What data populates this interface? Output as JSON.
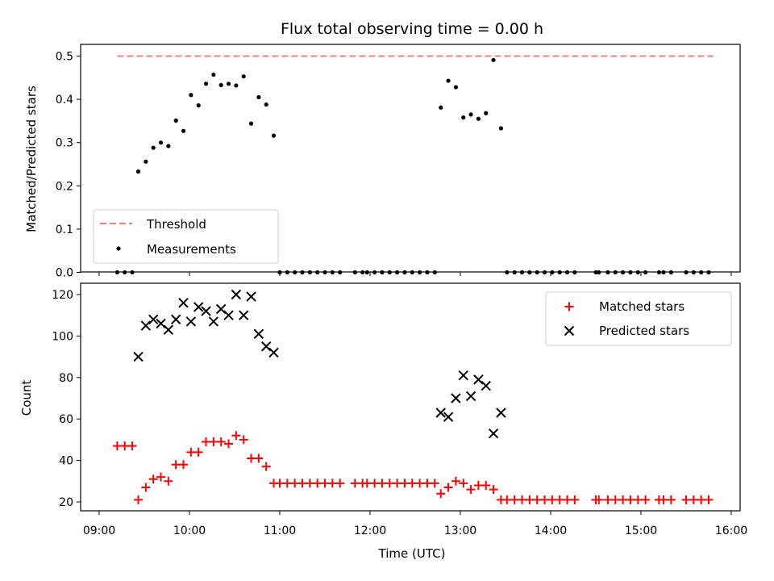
{
  "chart_data": [
    {
      "type": "scatter",
      "title": "Flux total observing time = 0.00 h",
      "xlabel": "",
      "ylabel": "Matched/Predicted stars",
      "xlim": [
        "09:00",
        "16:00"
      ],
      "ylim": [
        0,
        0.52
      ],
      "yticks": [
        "0.0",
        "0.1",
        "0.2",
        "0.3",
        "0.4",
        "0.5"
      ],
      "legend_position": "lower-left",
      "series": [
        {
          "name": "Threshold",
          "kind": "line",
          "style": "dashed",
          "color": "#f08080",
          "x": [
            "09:12",
            "15:48"
          ],
          "y": [
            0.5,
            0.5
          ]
        },
        {
          "name": "Measurements",
          "kind": "points",
          "color": "#000000",
          "points": [
            [
              "09:12",
              0
            ],
            [
              "09:17",
              0
            ],
            [
              "09:22",
              0
            ],
            [
              "09:26",
              0.233
            ],
            [
              "09:31",
              0.256
            ],
            [
              "09:36",
              0.288
            ],
            [
              "09:41",
              0.3
            ],
            [
              "09:46",
              0.292
            ],
            [
              "09:51",
              0.351
            ],
            [
              "09:56",
              0.327
            ],
            [
              "10:01",
              0.41
            ],
            [
              "10:06",
              0.386
            ],
            [
              "10:11",
              0.436
            ],
            [
              "10:16",
              0.457
            ],
            [
              "10:21",
              0.433
            ],
            [
              "10:26",
              0.436
            ],
            [
              "10:31",
              0.432
            ],
            [
              "10:36",
              0.453
            ],
            [
              "10:41",
              0.344
            ],
            [
              "10:46",
              0.405
            ],
            [
              "10:51",
              0.388
            ],
            [
              "10:56",
              0.316
            ],
            [
              "11:00",
              0
            ],
            [
              "11:05",
              0
            ],
            [
              "11:10",
              0
            ],
            [
              "11:15",
              0
            ],
            [
              "11:20",
              0
            ],
            [
              "11:25",
              0
            ],
            [
              "11:30",
              0
            ],
            [
              "11:35",
              0
            ],
            [
              "11:40",
              0
            ],
            [
              "11:50",
              0
            ],
            [
              "11:55",
              0
            ],
            [
              "11:58",
              0
            ],
            [
              "12:03",
              0
            ],
            [
              "12:08",
              0
            ],
            [
              "12:13",
              0
            ],
            [
              "12:18",
              0
            ],
            [
              "12:23",
              0
            ],
            [
              "12:28",
              0
            ],
            [
              "12:33",
              0
            ],
            [
              "12:38",
              0
            ],
            [
              "12:43",
              0
            ],
            [
              "12:47",
              0.381
            ],
            [
              "12:52",
              0.443
            ],
            [
              "12:57",
              0.428
            ],
            [
              "13:02",
              0.358
            ],
            [
              "13:07",
              0.365
            ],
            [
              "13:12",
              0.355
            ],
            [
              "13:17",
              0.368
            ],
            [
              "13:22",
              0.491
            ],
            [
              "13:27",
              0.333
            ],
            [
              "13:31",
              0
            ],
            [
              "13:36",
              0
            ],
            [
              "13:41",
              0
            ],
            [
              "13:46",
              0
            ],
            [
              "13:51",
              0
            ],
            [
              "13:56",
              0
            ],
            [
              "14:01",
              0
            ],
            [
              "14:06",
              0
            ],
            [
              "14:11",
              0
            ],
            [
              "14:16",
              0
            ],
            [
              "14:30",
              0
            ],
            [
              "14:32",
              0
            ],
            [
              "14:38",
              0
            ],
            [
              "14:43",
              0
            ],
            [
              "14:48",
              0
            ],
            [
              "14:53",
              0
            ],
            [
              "14:58",
              0
            ],
            [
              "15:03",
              0
            ],
            [
              "15:12",
              0
            ],
            [
              "15:15",
              0
            ],
            [
              "15:20",
              0
            ],
            [
              "15:30",
              0
            ],
            [
              "15:35",
              0
            ],
            [
              "15:40",
              0
            ],
            [
              "15:45",
              0
            ]
          ]
        }
      ]
    },
    {
      "type": "scatter",
      "title": "",
      "xlabel": "Time (UTC)",
      "ylabel": "Count",
      "xlim": [
        "09:00",
        "16:00"
      ],
      "ylim": [
        16,
        126
      ],
      "xticks": [
        "09:00",
        "10:00",
        "11:00",
        "12:00",
        "13:00",
        "14:00",
        "15:00",
        "16:00"
      ],
      "yticks": [
        "20",
        "40",
        "60",
        "80",
        "100",
        "120"
      ],
      "legend_position": "upper-right",
      "series": [
        {
          "name": "Matched stars",
          "marker": "plus",
          "color": "#ff0000",
          "points": [
            [
              "09:12",
              47
            ],
            [
              "09:17",
              47
            ],
            [
              "09:22",
              47
            ],
            [
              "09:26",
              21
            ],
            [
              "09:31",
              27
            ],
            [
              "09:36",
              31
            ],
            [
              "09:41",
              32
            ],
            [
              "09:46",
              30
            ],
            [
              "09:51",
              38
            ],
            [
              "09:56",
              38
            ],
            [
              "10:01",
              44
            ],
            [
              "10:06",
              44
            ],
            [
              "10:11",
              49
            ],
            [
              "10:16",
              49
            ],
            [
              "10:21",
              49
            ],
            [
              "10:26",
              48
            ],
            [
              "10:31",
              52
            ],
            [
              "10:36",
              50
            ],
            [
              "10:41",
              41
            ],
            [
              "10:46",
              41
            ],
            [
              "10:51",
              37
            ],
            [
              "10:56",
              29
            ],
            [
              "11:00",
              29
            ],
            [
              "11:05",
              29
            ],
            [
              "11:10",
              29
            ],
            [
              "11:15",
              29
            ],
            [
              "11:20",
              29
            ],
            [
              "11:25",
              29
            ],
            [
              "11:30",
              29
            ],
            [
              "11:35",
              29
            ],
            [
              "11:40",
              29
            ],
            [
              "11:50",
              29
            ],
            [
              "11:55",
              29
            ],
            [
              "11:58",
              29
            ],
            [
              "12:03",
              29
            ],
            [
              "12:08",
              29
            ],
            [
              "12:13",
              29
            ],
            [
              "12:18",
              29
            ],
            [
              "12:23",
              29
            ],
            [
              "12:28",
              29
            ],
            [
              "12:33",
              29
            ],
            [
              "12:38",
              29
            ],
            [
              "12:43",
              29
            ],
            [
              "12:47",
              24
            ],
            [
              "12:52",
              27
            ],
            [
              "12:57",
              30
            ],
            [
              "13:02",
              29
            ],
            [
              "13:07",
              26
            ],
            [
              "13:12",
              28
            ],
            [
              "13:17",
              28
            ],
            [
              "13:22",
              26
            ],
            [
              "13:27",
              21
            ],
            [
              "13:31",
              21
            ],
            [
              "13:36",
              21
            ],
            [
              "13:41",
              21
            ],
            [
              "13:46",
              21
            ],
            [
              "13:51",
              21
            ],
            [
              "13:56",
              21
            ],
            [
              "14:01",
              21
            ],
            [
              "14:06",
              21
            ],
            [
              "14:11",
              21
            ],
            [
              "14:16",
              21
            ],
            [
              "14:30",
              21
            ],
            [
              "14:32",
              21
            ],
            [
              "14:38",
              21
            ],
            [
              "14:43",
              21
            ],
            [
              "14:48",
              21
            ],
            [
              "14:53",
              21
            ],
            [
              "14:58",
              21
            ],
            [
              "15:03",
              21
            ],
            [
              "15:12",
              21
            ],
            [
              "15:15",
              21
            ],
            [
              "15:20",
              21
            ],
            [
              "15:30",
              21
            ],
            [
              "15:35",
              21
            ],
            [
              "15:40",
              21
            ],
            [
              "15:45",
              21
            ]
          ]
        },
        {
          "name": "Predicted stars",
          "marker": "x",
          "color": "#000000",
          "points": [
            [
              "09:26",
              90
            ],
            [
              "09:31",
              105
            ],
            [
              "09:36",
              108
            ],
            [
              "09:41",
              106
            ],
            [
              "09:46",
              103
            ],
            [
              "09:51",
              108
            ],
            [
              "09:56",
              116
            ],
            [
              "10:01",
              107
            ],
            [
              "10:06",
              114
            ],
            [
              "10:11",
              112
            ],
            [
              "10:16",
              107
            ],
            [
              "10:21",
              113
            ],
            [
              "10:26",
              110
            ],
            [
              "10:31",
              120
            ],
            [
              "10:36",
              110
            ],
            [
              "10:41",
              119
            ],
            [
              "10:46",
              101
            ],
            [
              "10:51",
              95
            ],
            [
              "10:56",
              92
            ],
            [
              "12:47",
              63
            ],
            [
              "12:52",
              61
            ],
            [
              "12:57",
              70
            ],
            [
              "13:02",
              81
            ],
            [
              "13:07",
              71
            ],
            [
              "13:12",
              79
            ],
            [
              "13:17",
              76
            ],
            [
              "13:22",
              53
            ],
            [
              "13:27",
              63
            ]
          ]
        }
      ]
    }
  ]
}
